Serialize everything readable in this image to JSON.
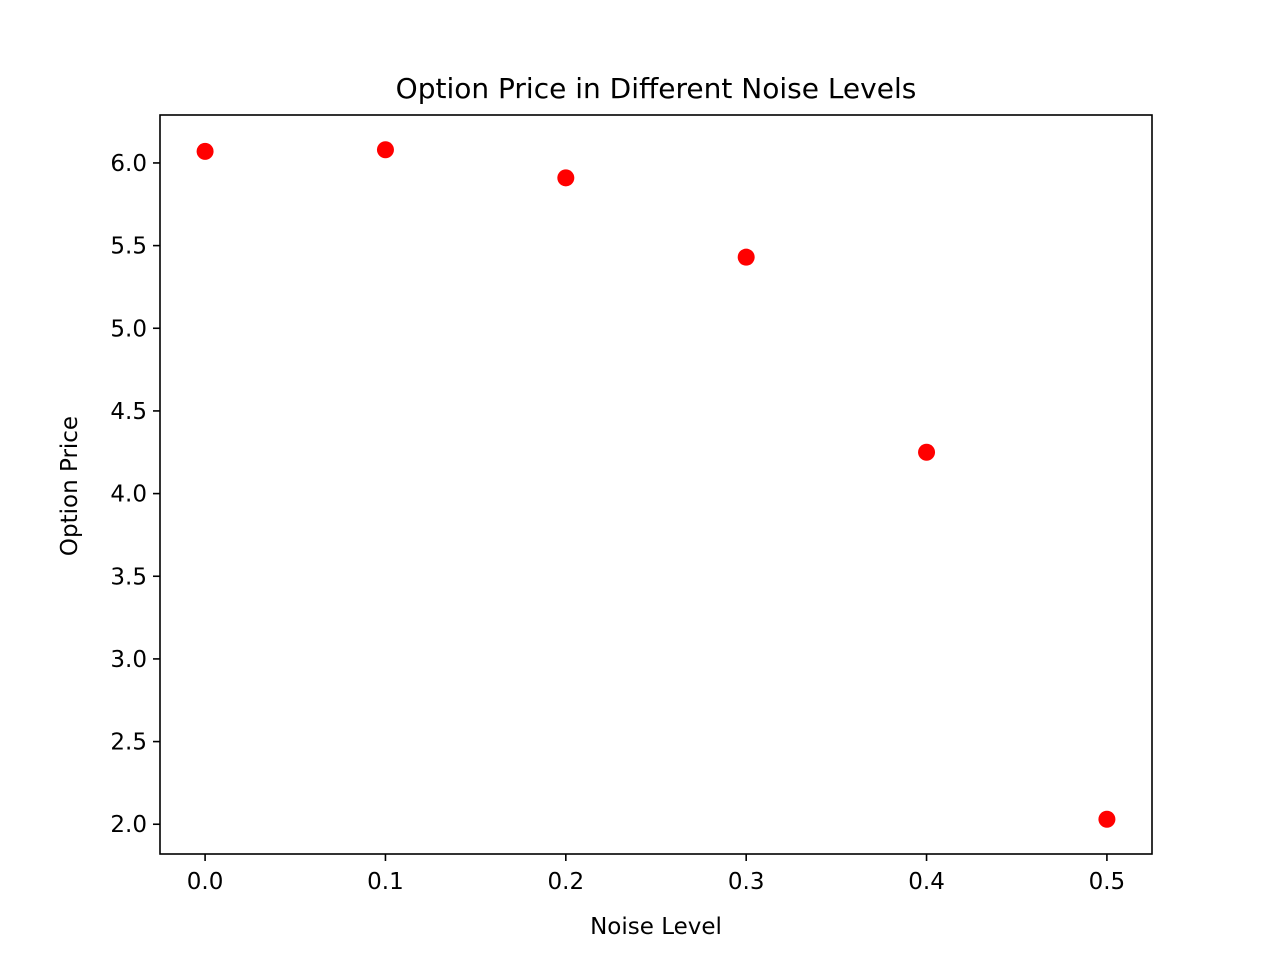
{
  "chart_data": {
    "type": "scatter",
    "title": "Option Price in Different Noise Levels",
    "xlabel": "Noise Level",
    "ylabel": "Option Price",
    "xlim": [
      -0.025,
      0.525
    ],
    "ylim": [
      1.82,
      6.29
    ],
    "x_ticks": [
      0.0,
      0.1,
      0.2,
      0.3,
      0.4,
      0.5
    ],
    "x_tick_labels": [
      "0.0",
      "0.1",
      "0.2",
      "0.3",
      "0.4",
      "0.5"
    ],
    "y_ticks": [
      2.0,
      2.5,
      3.0,
      3.5,
      4.0,
      4.5,
      5.0,
      5.5,
      6.0
    ],
    "y_tick_labels": [
      "2.0",
      "2.5",
      "3.0",
      "3.5",
      "4.0",
      "4.5",
      "5.0",
      "5.5",
      "6.0"
    ],
    "grid": false,
    "series": [
      {
        "color": "#ff0000",
        "marker": "circle",
        "x": [
          0.0,
          0.1,
          0.2,
          0.3,
          0.4,
          0.5
        ],
        "y": [
          6.07,
          6.08,
          5.91,
          5.43,
          4.25,
          2.03
        ]
      }
    ]
  }
}
